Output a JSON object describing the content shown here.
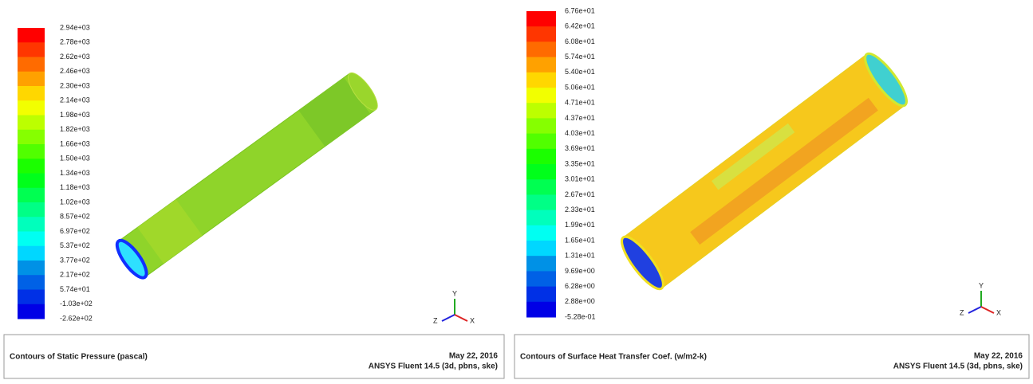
{
  "panels": [
    {
      "colorbar": [
        "2.94e+03",
        "2.78e+03",
        "2.62e+03",
        "2.46e+03",
        "2.30e+03",
        "2.14e+03",
        "1.98e+03",
        "1.82e+03",
        "1.66e+03",
        "1.50e+03",
        "1.34e+03",
        "1.18e+03",
        "1.02e+03",
        "8.57e+02",
        "6.97e+02",
        "5.37e+02",
        "3.77e+02",
        "2.17e+02",
        "5.74e+01",
        "-1.03e+02",
        "-2.62e+02"
      ],
      "title": "Contours of Static Pressure (pascal)",
      "date": "May 22, 2016",
      "software": "ANSYS Fluent 14.5 (3d, pbns, ske)",
      "axes": [
        "Y",
        "Z",
        "X"
      ]
    },
    {
      "colorbar": [
        "6.76e+01",
        "6.42e+01",
        "6.08e+01",
        "5.74e+01",
        "5.40e+01",
        "5.06e+01",
        "4.71e+01",
        "4.37e+01",
        "4.03e+01",
        "3.69e+01",
        "3.35e+01",
        "3.01e+01",
        "2.67e+01",
        "2.33e+01",
        "1.99e+01",
        "1.65e+01",
        "1.31e+01",
        "9.69e+00",
        "6.28e+00",
        "2.88e+00",
        "-5.28e-01"
      ],
      "title": "Contours of Surface Heat Transfer Coef. (w/m2-k)",
      "date": "May 22, 2016",
      "software": "ANSYS Fluent 14.5 (3d, pbns, ske)",
      "axes": [
        "Y",
        "Z",
        "X"
      ]
    }
  ]
}
